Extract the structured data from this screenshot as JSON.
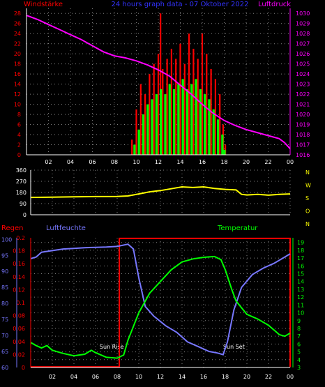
{
  "colors": {
    "background": "#000000",
    "wind_gust": "#ff0000",
    "wind_speed": "#00ff00",
    "pressure": "#ff00ff",
    "direction": "#ffff00",
    "humidity": "#7777ff",
    "temperature": "#00ff00",
    "rain": "#ff0000",
    "grid": "#808080",
    "axis_text": "#ffffff",
    "title_blue": "#3333ff",
    "sun_text": "#ffffff"
  },
  "chart_data": [
    {
      "type": "bar",
      "title": "24 hours graph data - 07 Oktober 2022",
      "left_label": "Windstärke",
      "right_label": "Luftdruck",
      "x_ticks": [
        "02",
        "04",
        "06",
        "08",
        "10",
        "12",
        "14",
        "16",
        "18",
        "20",
        "22",
        "00"
      ],
      "x_range": [
        0,
        24
      ],
      "y_left_ticks": [
        0,
        2,
        4,
        6,
        8,
        10,
        12,
        14,
        16,
        18,
        20,
        22,
        24,
        26,
        28
      ],
      "y_left_range": [
        0,
        29
      ],
      "y_right_ticks": [
        1016,
        1017,
        1018,
        1019,
        1020,
        1021,
        1022,
        1023,
        1024,
        1025,
        1026,
        1027,
        1028,
        1029,
        1030
      ],
      "y_right_range": [
        1016,
        1030.5
      ],
      "series": [
        {
          "key": "gust",
          "points": [
            [
              9.6,
              3
            ],
            [
              10,
              9
            ],
            [
              10.4,
              14
            ],
            [
              10.8,
              12
            ],
            [
              11.2,
              16
            ],
            [
              11.6,
              18
            ],
            [
              12,
              20
            ],
            [
              12.2,
              28
            ],
            [
              12.4,
              17
            ],
            [
              12.8,
              19
            ],
            [
              13.2,
              21
            ],
            [
              13.6,
              19
            ],
            [
              14,
              22
            ],
            [
              14.4,
              18
            ],
            [
              14.8,
              24
            ],
            [
              15.2,
              21
            ],
            [
              15.6,
              19
            ],
            [
              16,
              24
            ],
            [
              16.4,
              20
            ],
            [
              16.8,
              17
            ],
            [
              17.2,
              15
            ],
            [
              17.6,
              12
            ],
            [
              17.9,
              6
            ],
            [
              18.1,
              2
            ]
          ]
        },
        {
          "key": "speed",
          "points": [
            [
              9.8,
              2
            ],
            [
              10.2,
              5
            ],
            [
              10.6,
              8
            ],
            [
              11,
              10
            ],
            [
              11.4,
              11
            ],
            [
              11.8,
              12
            ],
            [
              12.2,
              13
            ],
            [
              12.6,
              12
            ],
            [
              13,
              14
            ],
            [
              13.4,
              13
            ],
            [
              13.8,
              14
            ],
            [
              14.2,
              15
            ],
            [
              14.6,
              13
            ],
            [
              15,
              14
            ],
            [
              15.4,
              15
            ],
            [
              15.8,
              13
            ],
            [
              16.2,
              12
            ],
            [
              16.6,
              11
            ],
            [
              17,
              9
            ],
            [
              17.4,
              7
            ],
            [
              17.8,
              4
            ],
            [
              18,
              1
            ]
          ]
        },
        {
          "key": "pressure",
          "points": [
            [
              0,
              1029.8
            ],
            [
              1,
              1029.4
            ],
            [
              2,
              1028.9
            ],
            [
              3,
              1028.4
            ],
            [
              4,
              1027.9
            ],
            [
              5,
              1027.4
            ],
            [
              6,
              1026.8
            ],
            [
              7,
              1026.2
            ],
            [
              8,
              1025.8
            ],
            [
              9,
              1025.6
            ],
            [
              10,
              1025.3
            ],
            [
              11,
              1024.9
            ],
            [
              12,
              1024.4
            ],
            [
              13,
              1023.8
            ],
            [
              14,
              1022.9
            ],
            [
              15,
              1022
            ],
            [
              16,
              1021
            ],
            [
              17,
              1020.1
            ],
            [
              18,
              1019.4
            ],
            [
              19,
              1018.9
            ],
            [
              20,
              1018.5
            ],
            [
              21,
              1018.2
            ],
            [
              22,
              1017.9
            ],
            [
              23,
              1017.6
            ],
            [
              23.5,
              1017.2
            ],
            [
              24,
              1016.6
            ]
          ]
        }
      ]
    },
    {
      "type": "line",
      "right_labels": [
        "N",
        "W",
        "S",
        "O",
        "N"
      ],
      "x_range": [
        0,
        24
      ],
      "y_ticks": [
        0,
        90,
        180,
        270,
        360
      ],
      "y_range": [
        0,
        360
      ],
      "series": [
        {
          "key": "direction",
          "points": [
            [
              0,
              140
            ],
            [
              2,
              142
            ],
            [
              4,
              145
            ],
            [
              6,
              147
            ],
            [
              8,
              148
            ],
            [
              9,
              152
            ],
            [
              10,
              168
            ],
            [
              11,
              185
            ],
            [
              12,
              195
            ],
            [
              13,
              210
            ],
            [
              14,
              225
            ],
            [
              15,
              220
            ],
            [
              16,
              225
            ],
            [
              17,
              212
            ],
            [
              18,
              205
            ],
            [
              19,
              200
            ],
            [
              19.5,
              165
            ],
            [
              20,
              160
            ],
            [
              21,
              165
            ],
            [
              22,
              158
            ],
            [
              23,
              165
            ],
            [
              24,
              168
            ]
          ]
        }
      ]
    },
    {
      "type": "line",
      "left_label": "Regen",
      "humidity_label": "Luftfeuchte",
      "right_label": "Temperatur",
      "x_range": [
        0,
        24
      ],
      "rain_ticks": [
        0,
        0.02,
        0.04,
        0.06,
        0.08,
        0.1,
        0.12,
        0.14,
        0.16,
        0.18,
        0.2
      ],
      "rain_tick_labels": [
        "0",
        "0.02",
        "0.04",
        "0.06",
        "0.08",
        "0.1",
        "0.12",
        "0.14",
        "0.16",
        "0.18",
        "0.2"
      ],
      "humidity_ticks": [
        60,
        65,
        70,
        75,
        80,
        85,
        90,
        95,
        100
      ],
      "humidity_range": [
        60,
        100.5
      ],
      "temp_ticks": [
        3,
        4,
        5,
        6,
        7,
        8,
        9,
        10,
        11,
        12,
        13,
        14,
        15,
        16,
        17,
        18,
        19
      ],
      "temp_range": [
        3,
        19.6
      ],
      "annotations": [
        {
          "text": "Sun Rise",
          "x": 7.5
        },
        {
          "text": "Sun Set",
          "x": 18.8
        }
      ],
      "series": [
        {
          "key": "humidity",
          "points": [
            [
              0,
              94
            ],
            [
              0.5,
              94.5
            ],
            [
              1,
              96
            ],
            [
              2,
              96.5
            ],
            [
              3,
              97
            ],
            [
              4,
              97.2
            ],
            [
              5,
              97.4
            ],
            [
              6,
              97.5
            ],
            [
              7,
              97.6
            ],
            [
              8,
              97.8
            ],
            [
              9,
              98.5
            ],
            [
              9.5,
              97
            ],
            [
              10,
              88
            ],
            [
              10.6,
              79
            ],
            [
              11.4,
              76
            ],
            [
              12.5,
              73
            ],
            [
              13.5,
              71
            ],
            [
              14.5,
              68
            ],
            [
              15.5,
              66.5
            ],
            [
              16.5,
              65
            ],
            [
              17.3,
              64.5
            ],
            [
              17.8,
              64
            ],
            [
              18.2,
              68
            ],
            [
              18.8,
              78
            ],
            [
              19.5,
              85
            ],
            [
              20.5,
              89
            ],
            [
              21.5,
              91
            ],
            [
              22.5,
              92.5
            ],
            [
              23.5,
              94.5
            ],
            [
              24,
              95.5
            ]
          ]
        },
        {
          "key": "temperature",
          "points": [
            [
              0,
              6.2
            ],
            [
              0.5,
              5.8
            ],
            [
              1,
              5.5
            ],
            [
              1.5,
              5.8
            ],
            [
              2,
              5.2
            ],
            [
              3,
              4.8
            ],
            [
              4,
              4.5
            ],
            [
              5,
              4.7
            ],
            [
              5.6,
              5.2
            ],
            [
              6,
              4.9
            ],
            [
              7,
              4.3
            ],
            [
              8,
              4.2
            ],
            [
              8.6,
              4.6
            ],
            [
              9,
              6.5
            ],
            [
              10,
              10
            ],
            [
              11,
              12.5
            ],
            [
              12,
              14
            ],
            [
              13,
              15.5
            ],
            [
              14,
              16.5
            ],
            [
              15,
              16.9
            ],
            [
              16,
              17.1
            ],
            [
              17,
              17.2
            ],
            [
              17.6,
              16.8
            ],
            [
              18,
              15.5
            ],
            [
              18.6,
              13
            ],
            [
              19,
              11.5
            ],
            [
              20,
              9.8
            ],
            [
              21,
              9.2
            ],
            [
              22,
              8.4
            ],
            [
              23,
              7.2
            ],
            [
              23.5,
              7
            ],
            [
              24,
              7.4
            ]
          ]
        },
        {
          "key": "rain",
          "points": [
            [
              0,
              0.001
            ],
            [
              8.2,
              0.001
            ],
            [
              8.2,
              0.199
            ],
            [
              24,
              0.199
            ],
            [
              24,
              0.001
            ]
          ]
        }
      ]
    }
  ]
}
